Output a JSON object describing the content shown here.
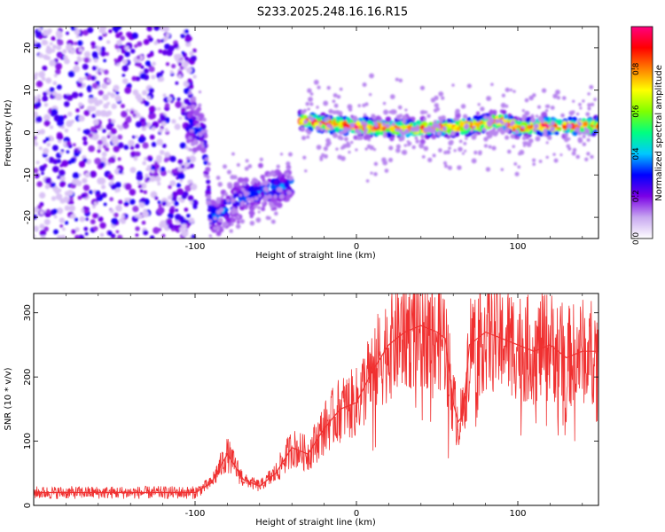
{
  "title": "S233.2025.248.16.16.R15",
  "chart_data": [
    {
      "type": "heatmap",
      "title": "S233.2025.248.16.16.R15",
      "xlabel": "Height of straight line (km)",
      "ylabel": "Frequency (Hz)",
      "xlim": [
        -200,
        150
      ],
      "ylim": [
        -25,
        25
      ],
      "xticks": [
        -100,
        0,
        100
      ],
      "yticks": [
        -20,
        -10,
        0,
        10,
        20
      ],
      "grid": false,
      "colorbar": {
        "label": "Normalized spectral amplitude",
        "range": [
          0,
          1
        ],
        "ticks": [
          "0.0",
          "0.2",
          "0.4",
          "0.6",
          "0.8"
        ],
        "colors": [
          "#ffffff",
          "#c8a8f0",
          "#7a00e6",
          "#0000ff",
          "#00c8ff",
          "#00ff80",
          "#80ff00",
          "#ffff00",
          "#ff8000",
          "#ff0000",
          "#ff0080"
        ]
      },
      "features": [
        {
          "desc": "scattered noise",
          "x_range": [
            -200,
            -100
          ],
          "freq_range": [
            -25,
            25
          ],
          "amplitude": 0.2
        },
        {
          "desc": "dispersed track",
          "x": [
            -105,
            -95,
            -90,
            -80,
            -70,
            -60,
            -50,
            -40
          ],
          "freq": [
            2,
            0,
            -20,
            -18,
            -15,
            -14,
            -13,
            -12
          ],
          "amplitude": 0.3
        },
        {
          "desc": "main signal line",
          "x": [
            -35,
            -20,
            0,
            20,
            40,
            60,
            80,
            90,
            100,
            110,
            130,
            150
          ],
          "freq": [
            3,
            2,
            1.5,
            1,
            1,
            1.2,
            2,
            3,
            1,
            1.5,
            1.5,
            1.5
          ],
          "amplitude": 0.8
        }
      ]
    },
    {
      "type": "line",
      "xlabel": "Height of straight line (km)",
      "ylabel": "SNR (10 * v/v)",
      "xlim": [
        -200,
        150
      ],
      "ylim": [
        0,
        330
      ],
      "xticks": [
        -100,
        0,
        100
      ],
      "yticks": [
        0,
        100,
        200,
        300
      ],
      "grid": false,
      "color": "#f03030",
      "series": [
        {
          "x": [
            -200,
            -180,
            -160,
            -140,
            -120,
            -100,
            -90,
            -80,
            -70,
            -60,
            -50,
            -40,
            -30,
            -20,
            -10,
            0,
            10,
            20,
            30,
            40,
            50,
            55,
            60,
            63,
            66,
            70,
            75,
            80,
            90,
            100,
            110,
            120,
            130,
            140,
            150
          ],
          "y": [
            20,
            20,
            20,
            20,
            20,
            20,
            35,
            80,
            40,
            30,
            50,
            90,
            80,
            120,
            150,
            160,
            210,
            250,
            270,
            280,
            270,
            260,
            160,
            130,
            140,
            250,
            260,
            270,
            260,
            250,
            240,
            250,
            230,
            240,
            240
          ]
        }
      ]
    }
  ]
}
